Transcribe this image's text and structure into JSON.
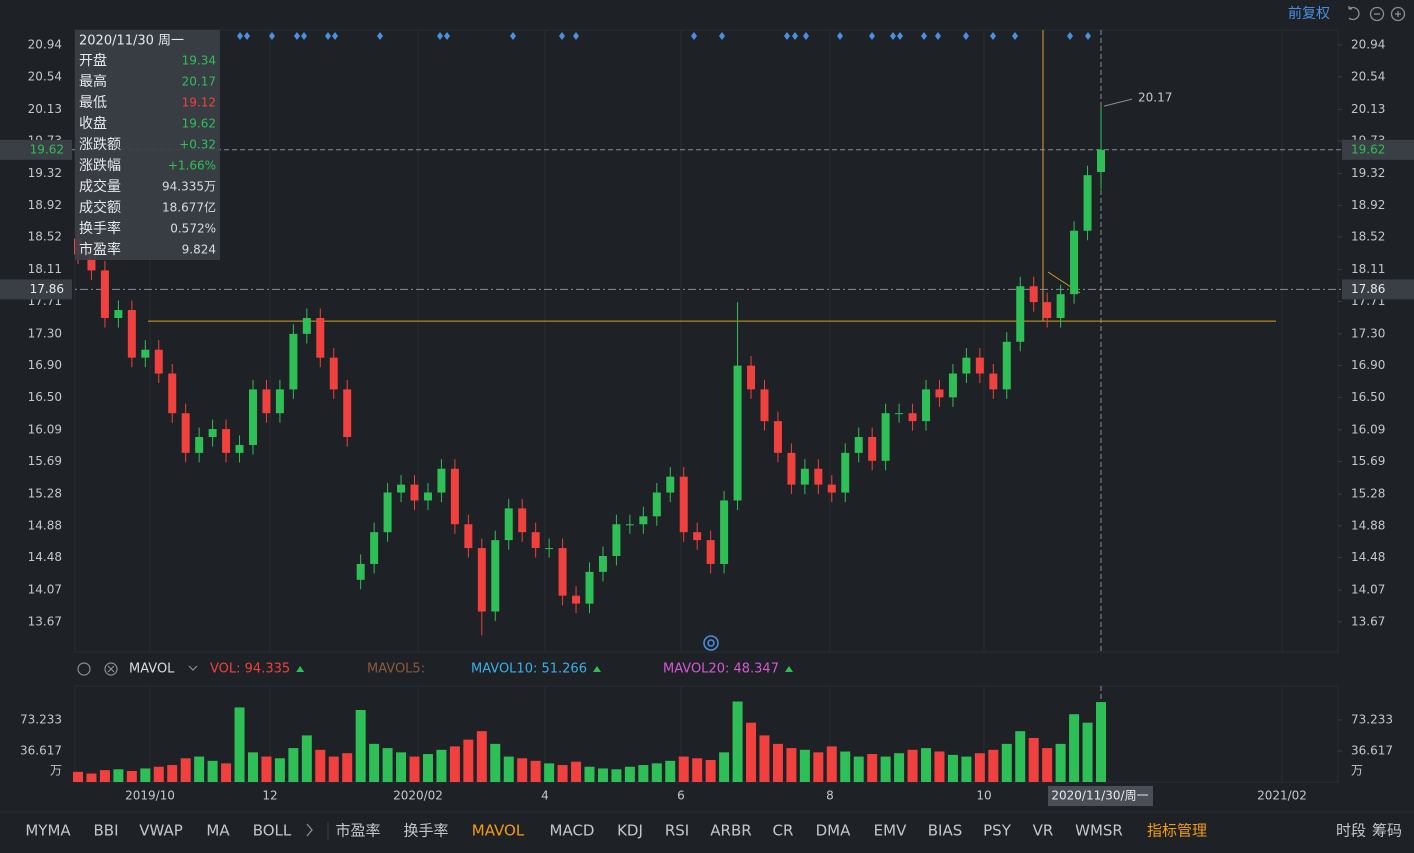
{
  "toolbar": {
    "adjust": "前复权"
  },
  "chart_data": {
    "type": "candlestick",
    "up_color": "#2fbf57",
    "down_color": "#f0413e",
    "ylim": [
      13.29,
      21.13
    ],
    "yticks": [
      20.94,
      20.54,
      20.13,
      19.73,
      19.32,
      18.92,
      18.52,
      18.11,
      17.71,
      {
        "value": 17.3,
        "label": "17.30"
      },
      {
        "value": 16.9,
        "label": "16.90"
      },
      {
        "value": 16.5,
        "label": "16.50"
      },
      16.09,
      15.69,
      15.28,
      14.88,
      14.48,
      14.07,
      13.67
    ],
    "candles": [
      [
        18.5,
        18.62,
        18.18,
        18.3
      ],
      [
        18.3,
        18.42,
        17.98,
        18.1
      ],
      [
        18.1,
        18.22,
        17.38,
        17.5
      ],
      [
        17.5,
        17.72,
        17.38,
        17.6
      ],
      [
        17.6,
        17.72,
        16.88,
        17.0
      ],
      [
        17.0,
        17.22,
        16.88,
        17.1
      ],
      [
        17.1,
        17.22,
        16.68,
        16.8
      ],
      [
        16.8,
        16.92,
        16.18,
        16.3
      ],
      [
        16.3,
        16.42,
        15.68,
        15.8
      ],
      [
        15.8,
        16.12,
        15.68,
        16.0
      ],
      [
        16.0,
        16.22,
        15.88,
        16.1
      ],
      [
        16.1,
        16.22,
        15.68,
        15.8
      ],
      [
        15.8,
        16.02,
        15.68,
        15.9
      ],
      [
        15.9,
        16.72,
        15.78,
        16.6
      ],
      [
        16.6,
        16.72,
        16.18,
        16.3
      ],
      [
        16.3,
        16.72,
        16.18,
        16.6
      ],
      [
        16.6,
        17.42,
        16.48,
        17.3
      ],
      [
        17.3,
        17.62,
        17.18,
        17.5
      ],
      [
        17.5,
        17.62,
        16.88,
        17.0
      ],
      [
        17.0,
        17.12,
        16.48,
        16.6
      ],
      [
        16.6,
        16.72,
        15.88,
        16.0
      ],
      [
        14.2,
        14.52,
        14.08,
        14.4
      ],
      [
        14.4,
        14.92,
        14.28,
        14.8
      ],
      [
        14.8,
        15.42,
        14.68,
        15.3
      ],
      [
        15.3,
        15.52,
        15.18,
        15.4
      ],
      [
        15.4,
        15.52,
        15.08,
        15.2
      ],
      [
        15.2,
        15.42,
        15.08,
        15.3
      ],
      [
        15.3,
        15.72,
        15.18,
        15.6
      ],
      [
        15.6,
        15.72,
        14.78,
        14.9
      ],
      [
        14.9,
        15.02,
        14.48,
        14.6
      ],
      [
        14.6,
        14.72,
        13.5,
        13.8
      ],
      [
        13.8,
        14.82,
        13.68,
        14.7
      ],
      [
        14.7,
        15.22,
        14.58,
        15.1
      ],
      [
        15.1,
        15.22,
        14.68,
        14.8
      ],
      [
        14.8,
        14.92,
        14.48,
        14.6
      ],
      [
        14.6,
        14.72,
        14.48,
        14.6
      ],
      [
        14.6,
        14.72,
        13.88,
        14.0
      ],
      [
        14.0,
        14.12,
        13.78,
        13.9
      ],
      [
        13.9,
        14.42,
        13.78,
        14.3
      ],
      [
        14.3,
        14.62,
        14.18,
        14.5
      ],
      [
        14.5,
        15.02,
        14.38,
        14.9
      ],
      [
        14.9,
        15.02,
        14.78,
        14.9
      ],
      [
        14.9,
        15.12,
        14.78,
        15.0
      ],
      [
        15.0,
        15.42,
        14.88,
        15.3
      ],
      [
        15.3,
        15.62,
        15.18,
        15.5
      ],
      [
        15.5,
        15.62,
        14.68,
        14.8
      ],
      [
        14.8,
        14.92,
        14.58,
        14.7
      ],
      [
        14.7,
        14.82,
        14.28,
        14.4
      ],
      [
        14.4,
        15.32,
        14.28,
        15.2
      ],
      [
        15.2,
        17.7,
        15.08,
        16.9
      ],
      [
        16.9,
        17.02,
        16.48,
        16.6
      ],
      [
        16.6,
        16.72,
        16.08,
        16.2
      ],
      [
        16.2,
        16.32,
        15.68,
        15.8
      ],
      [
        15.8,
        15.92,
        15.28,
        15.4
      ],
      [
        15.4,
        15.72,
        15.28,
        15.6
      ],
      [
        15.6,
        15.72,
        15.28,
        15.4
      ],
      [
        15.4,
        15.52,
        15.18,
        15.3
      ],
      [
        15.3,
        15.92,
        15.18,
        15.8
      ],
      [
        15.8,
        16.12,
        15.68,
        16.0
      ],
      [
        16.0,
        16.12,
        15.58,
        15.7
      ],
      [
        15.7,
        16.42,
        15.58,
        16.3
      ],
      [
        16.3,
        16.42,
        16.18,
        16.3
      ],
      [
        16.3,
        16.42,
        16.08,
        16.2
      ],
      [
        16.2,
        16.72,
        16.08,
        16.6
      ],
      [
        16.6,
        16.72,
        16.38,
        16.5
      ],
      [
        16.5,
        16.92,
        16.38,
        16.8
      ],
      [
        16.8,
        17.12,
        16.68,
        17.0
      ],
      [
        17.0,
        17.12,
        16.68,
        16.8
      ],
      [
        16.8,
        16.92,
        16.48,
        16.6
      ],
      [
        16.6,
        17.32,
        16.48,
        17.2
      ],
      [
        17.2,
        18.02,
        17.08,
        17.9
      ],
      [
        17.9,
        18.02,
        17.58,
        17.7
      ],
      [
        17.7,
        17.82,
        17.38,
        17.5
      ],
      [
        17.5,
        17.92,
        17.38,
        17.8
      ],
      [
        17.8,
        18.72,
        17.68,
        18.6
      ],
      [
        18.6,
        19.42,
        18.48,
        19.3
      ],
      [
        19.34,
        20.17,
        19.12,
        19.62
      ]
    ],
    "high_label": 20.17,
    "last_price": 19.62,
    "cross_price": 17.86,
    "support_level": 17.46,
    "x_labels": [
      "2019/10",
      "12",
      "2020/02",
      "4",
      "6",
      "8",
      "10",
      "2021/02"
    ],
    "cross_date": "2020/11/30/周一",
    "volume": {
      "indicator": "MAVOL",
      "vol": "VOL: 94.335",
      "ma5": "MAVOL5:",
      "ma10": "MAVOL10: 51.266",
      "ma20": "MAVOL20: 48.347",
      "unit": "万",
      "ylim": [
        0,
        113.3
      ],
      "yticks": [
        36.617,
        73.233
      ],
      "values": [
        12,
        10,
        14,
        15,
        13,
        16,
        18,
        20,
        28,
        30,
        25,
        22,
        88,
        35,
        30,
        28,
        40,
        55,
        38,
        30,
        34,
        85,
        45,
        40,
        35,
        30,
        33,
        38,
        42,
        50,
        60,
        45,
        30,
        28,
        25,
        22,
        20,
        24,
        18,
        16,
        15,
        18,
        20,
        22,
        25,
        30,
        28,
        26,
        35,
        95,
        70,
        55,
        45,
        40,
        38,
        35,
        42,
        36,
        30,
        33,
        30,
        34,
        38,
        40,
        36,
        32,
        30,
        34,
        38,
        45,
        60,
        52,
        40,
        45,
        80,
        70,
        94.335
      ]
    }
  },
  "tooltip": {
    "date": "2020/11/30 周一",
    "rows": [
      {
        "label": "开盘",
        "value": 19.34,
        "color": "#2fbf57"
      },
      {
        "label": "最高",
        "value": 20.17,
        "color": "#2fbf57"
      },
      {
        "label": "最低",
        "value": 19.12,
        "color": "#f0413e"
      },
      {
        "label": "收盘",
        "value": 19.62,
        "color": "#2fbf57"
      },
      {
        "label": "涨跌额",
        "value": "+0.32",
        "color": "#2fbf57"
      },
      {
        "label": "涨跌幅",
        "value": "+1.66%",
        "color": "#2fbf57"
      },
      {
        "label": "成交量",
        "value": "94.335万",
        "color": "#d8dbe0"
      },
      {
        "label": "成交额",
        "value": "18.677亿",
        "color": "#d8dbe0"
      },
      {
        "label": "换手率",
        "value": "0.572%",
        "color": "#d8dbe0"
      },
      {
        "label": "市盈率",
        "value": 9.824,
        "color": "#d8dbe0"
      }
    ]
  },
  "tabs": {
    "items": [
      "MYMA",
      "BBI",
      "VWAP",
      "MA",
      "BOLL",
      "市盈率",
      "换手率",
      "MAVOL",
      "MACD",
      "KDJ",
      "RSI",
      "ARBR",
      "CR",
      "DMA",
      "EMV",
      "BIAS",
      "PSY",
      "VR",
      "WMSR"
    ],
    "active": 7,
    "manage": "指标管理",
    "side": [
      "时段",
      "筹码"
    ]
  }
}
